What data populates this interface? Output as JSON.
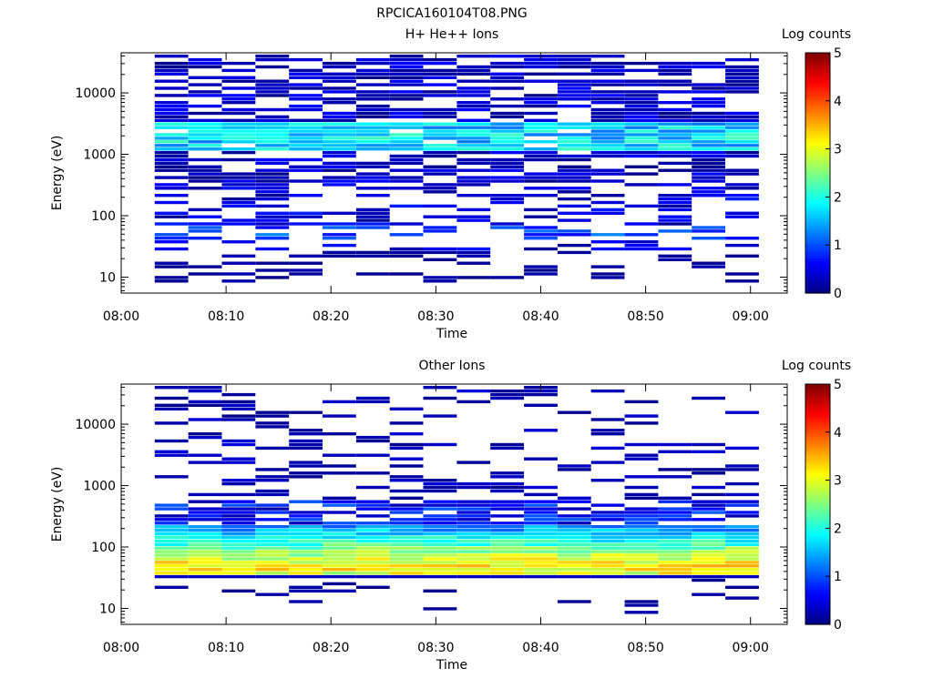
{
  "figure_title": "RPCICA160104T08.PNG",
  "colors": {
    "background": "#ffffff",
    "axis": "#000000",
    "colormap": "jet"
  },
  "chart_data": [
    {
      "type": "heatmap",
      "title": "H+ He++ Ions",
      "xlabel": "Time",
      "ylabel": "Energy (eV)",
      "x_ticks": [
        "08:00",
        "08:10",
        "08:20",
        "08:30",
        "08:40",
        "08:50",
        "09:00"
      ],
      "y_ticks": [
        "10",
        "100",
        "1000",
        "10000"
      ],
      "y_scale": "log",
      "ylim": [
        5.5,
        45000
      ],
      "colorbar": {
        "label": "Log counts",
        "ticks": [
          "0",
          "1",
          "2",
          "3",
          "4",
          "5"
        ],
        "range": [
          0,
          5
        ],
        "colormap": "jet"
      },
      "profile": "hplus",
      "seed": 11
    },
    {
      "type": "heatmap",
      "title": "Other Ions",
      "xlabel": "Time",
      "ylabel": "Energy (eV)",
      "x_ticks": [
        "08:00",
        "08:10",
        "08:20",
        "08:30",
        "08:40",
        "08:50",
        "09:00"
      ],
      "y_ticks": [
        "10",
        "100",
        "1000",
        "10000"
      ],
      "y_scale": "log",
      "ylim": [
        5.5,
        45000
      ],
      "colorbar": {
        "label": "Log counts",
        "ticks": [
          "0",
          "1",
          "2",
          "3",
          "4",
          "5"
        ],
        "range": [
          0,
          5
        ],
        "colormap": "jet"
      },
      "profile": "other",
      "seed": 29
    }
  ]
}
